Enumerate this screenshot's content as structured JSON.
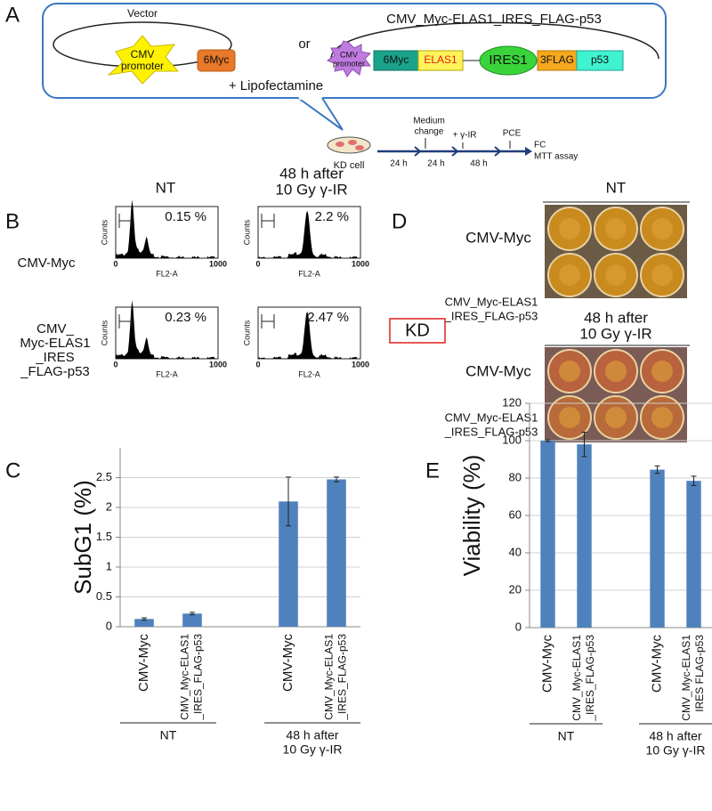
{
  "panels": {
    "a": "A",
    "b": "B",
    "c": "C",
    "d": "D",
    "e": "E"
  },
  "diagram": {
    "vector": "Vector",
    "cmv_promoter": [
      "CMV",
      "promoter"
    ],
    "six_myc": "6Myc",
    "or": "or",
    "construct_title": "CMV_Myc-ELAS1_IRES_FLAG-p53",
    "construct_parts": [
      "6Myc",
      "ELAS1",
      "IRES1",
      "3FLAG",
      "p53"
    ],
    "lipofectamine": "+ Lipofectamine",
    "kd_cell": "KD cell",
    "intervals": [
      "24 h",
      "24 h",
      "48 h"
    ],
    "events": [
      [
        "Medium",
        "change"
      ],
      "+ γ-IR",
      "PCE"
    ],
    "readout": [
      "FC",
      "MTT assay"
    ]
  },
  "flow": {
    "col_headers": [
      [
        "NT"
      ],
      [
        "48 h after",
        "10 Gy γ-IR"
      ]
    ],
    "row_labels": [
      [
        "CMV-Myc"
      ],
      [
        "CMV_",
        "Myc-ELAS1",
        "_IRES",
        "_FLAG-p53"
      ]
    ],
    "percents": [
      "0.15 %",
      "2.2 %",
      "0.23 %",
      "2.47 %"
    ],
    "y_axis": "Counts",
    "x_axis": "FL2-A",
    "x_min": "0",
    "x_max": "1000"
  },
  "plates": {
    "headers": [
      [
        "NT"
      ],
      [
        "48 h after",
        "10 Gy γ-IR"
      ]
    ],
    "row_labels": [
      "CMV-Myc",
      [
        "CMV_Myc-ELAS1",
        "_IRES_FLAG-p53"
      ]
    ],
    "cell_line": "KD"
  },
  "chart_data": [
    {
      "type": "bar",
      "ylabel": "SubG1 (%)",
      "color": "#4f81bd",
      "grid": true,
      "categories": [
        [
          "CMV-Myc"
        ],
        [
          "CMV_Myc-ELAS1",
          "_IRES_FLAG-p53"
        ],
        null,
        [
          "CMV-Myc"
        ],
        [
          "CMV_Myc-ELAS1",
          "_IRES_FLAG-p53"
        ]
      ],
      "values": [
        0.13,
        0.22,
        null,
        2.1,
        2.47
      ],
      "errors": [
        0.02,
        0.02,
        null,
        0.41,
        0.04
      ],
      "group_labels": [
        [
          "NT"
        ],
        [
          "48 h after",
          "10 Gy γ-IR"
        ]
      ],
      "ylim": [
        0,
        3
      ],
      "yticks": [
        0,
        0.5,
        1,
        1.5,
        2,
        2.5
      ]
    },
    {
      "type": "bar",
      "ylabel": "Viability (%)",
      "color": "#4f81bd",
      "grid": true,
      "categories": [
        [
          "CMV-Myc"
        ],
        [
          "CMV_Myc-ELAS1",
          "_IRES_FLAG-p53"
        ],
        null,
        [
          "CMV-Myc"
        ],
        [
          "CMV_Myc-ELAS1",
          "IRES FLAG-p53"
        ]
      ],
      "values": [
        100,
        98,
        null,
        84.5,
        78.5
      ],
      "errors": [
        0.5,
        6.5,
        null,
        2,
        2.5
      ],
      "group_labels": [
        [
          "NT"
        ],
        [
          "48 h after",
          "10 Gy γ-IR"
        ]
      ],
      "ylim": [
        0,
        120
      ],
      "yticks": [
        0,
        20,
        40,
        60,
        80,
        100,
        120
      ]
    }
  ]
}
